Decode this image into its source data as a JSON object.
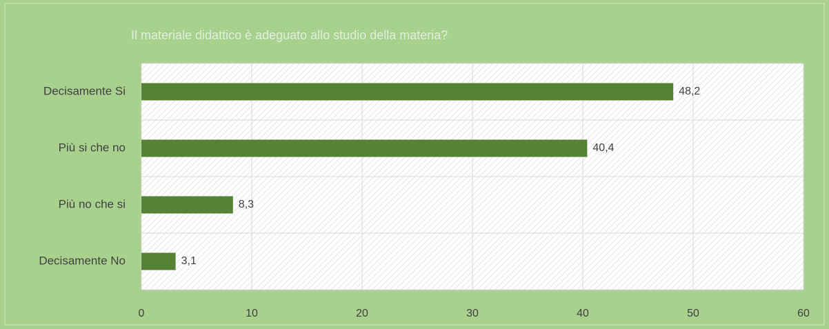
{
  "chart_data": {
    "type": "bar",
    "orientation": "horizontal",
    "title": "Il materiale didattico è adeguato allo studio della materia?",
    "categories": [
      "Decisamente Si",
      "Più si che no",
      "Più no che si",
      "Decisamente No"
    ],
    "values": [
      48.2,
      40.4,
      8.3,
      3.1
    ],
    "value_labels": [
      "48,2",
      "40,4",
      "8,3",
      "3,1"
    ],
    "color": "#548235",
    "xlim": [
      0,
      60
    ],
    "xticks": [
      0,
      10,
      20,
      30,
      40,
      50,
      60
    ],
    "grid": true
  }
}
